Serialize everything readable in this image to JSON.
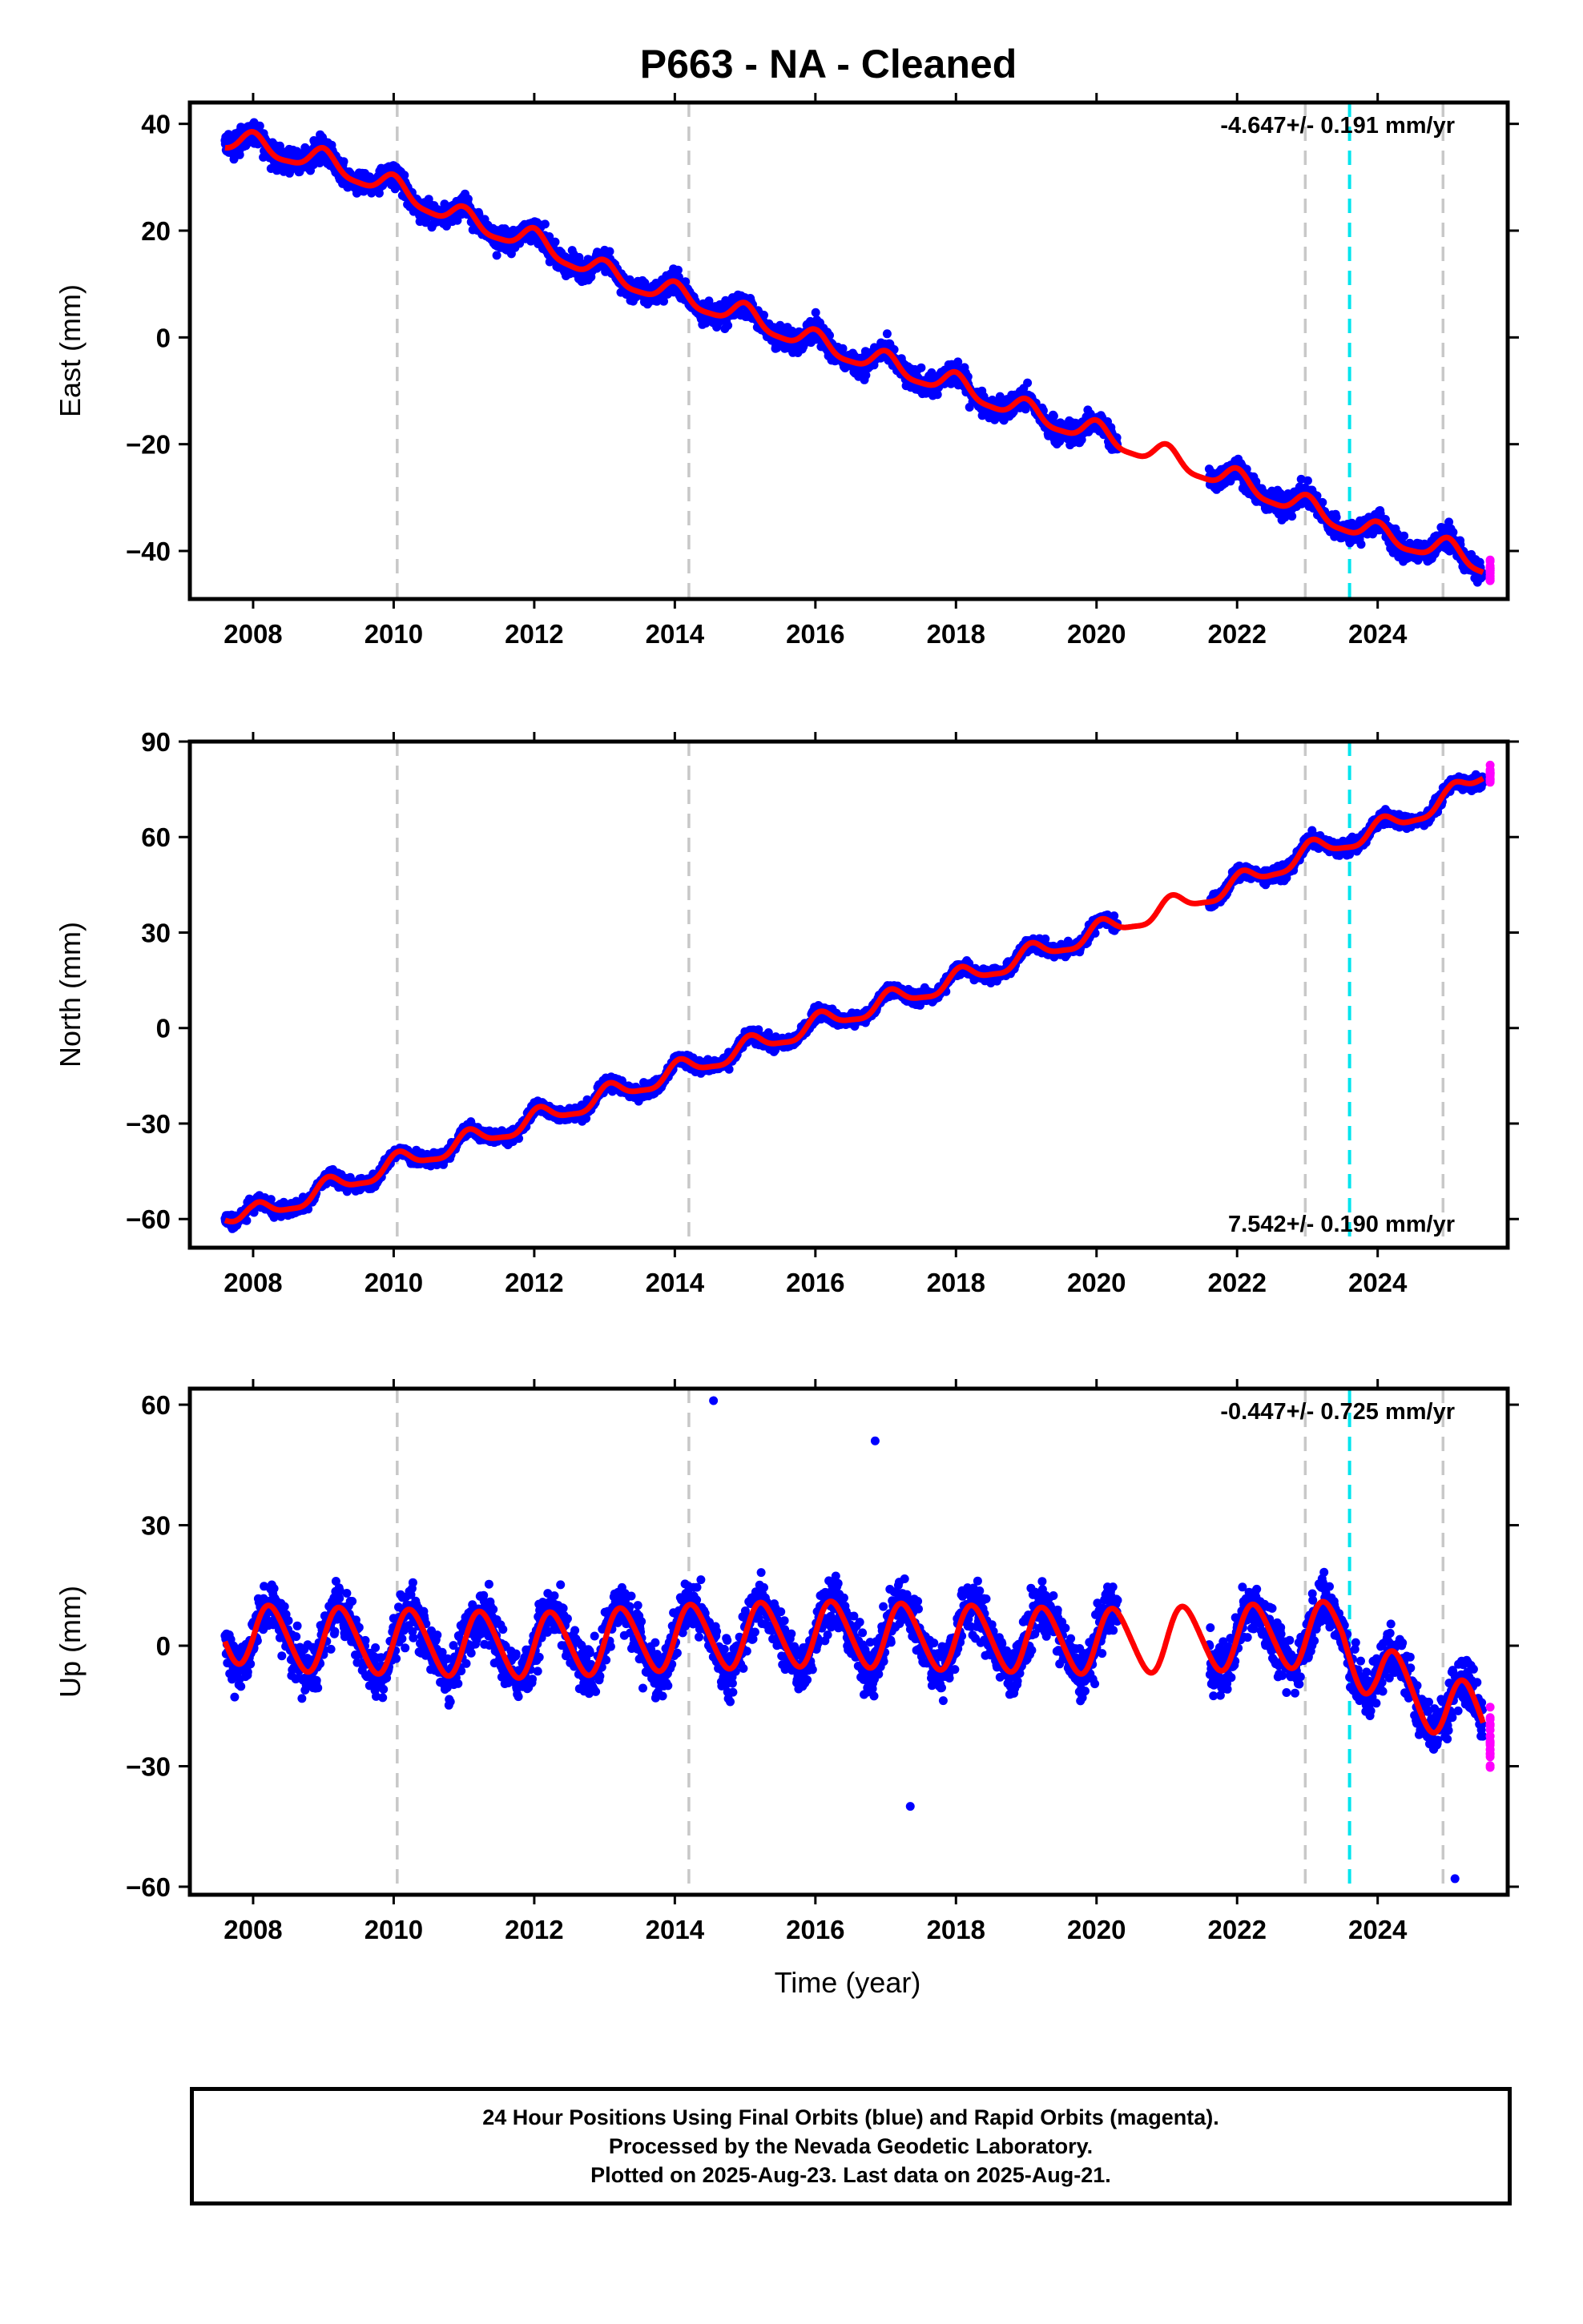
{
  "title": "P663  - NA - Cleaned",
  "xlabel": "Time (year)",
  "footer": {
    "line1": "24 Hour Positions Using Final Orbits (blue) and Rapid Orbits (magenta).",
    "line2": "Processed by the Nevada Geodetic Laboratory.",
    "line3": "Plotted on 2025-Aug-23. Last data on 2025-Aug-21."
  },
  "colors": {
    "final_orbit_points": "#0000ff",
    "rapid_orbit_points": "#ff00ff",
    "model_curve": "#ff0000",
    "event_lines": "#c8c8c8",
    "highlight_event_line": "#00e5ee"
  },
  "chart_data": [
    {
      "type": "scatter",
      "component": "east",
      "ylabel": "East (mm)",
      "rate_text": "-4.647+/- 0.191 mm/yr",
      "xlim": [
        2007.1,
        2025.85
      ],
      "ylim": [
        -49,
        44
      ],
      "xticks": [
        2008,
        2010,
        2012,
        2014,
        2016,
        2018,
        2020,
        2022,
        2024
      ],
      "yticks": [
        -40,
        -20,
        0,
        20,
        40
      ],
      "final_orbit_span": [
        2007.6,
        2025.5
      ],
      "rapid_orbit_span": [
        2025.5,
        2025.62
      ],
      "data_gap": [
        2020.3,
        2021.6
      ],
      "event_lines": [
        2010.05,
        2014.2,
        2022.97,
        2024.93
      ],
      "highlight_event_line": 2023.6,
      "model": {
        "reference_year": 2016,
        "value_at_reference": -1.0,
        "annual_amplitude": 2.0,
        "annual_phase_deg": 90,
        "semiannual_amplitude": 0.5,
        "scatter": 2.0,
        "offsets": [
          {
            "year": 2024.93,
            "value": 2.5
          }
        ]
      },
      "samples": {
        "years": [
          2007.6,
          2008.0,
          2009.0,
          2010.0,
          2011.0,
          2012.0,
          2013.0,
          2014.0,
          2015.0,
          2016.0,
          2017.0,
          2018.0,
          2019.0,
          2020.0,
          2022.0,
          2023.0,
          2024.0,
          2025.0,
          2025.6
        ],
        "values": [
          37,
          36,
          33,
          28,
          22,
          18,
          12,
          8,
          4,
          -1,
          -5,
          -9,
          -14,
          -18,
          -27,
          -32,
          -37,
          -40,
          -43
        ]
      }
    },
    {
      "type": "scatter",
      "component": "north",
      "ylabel": "North (mm)",
      "rate_text": "7.542+/- 0.190 mm/yr",
      "xlim": [
        2007.1,
        2025.85
      ],
      "ylim": [
        -69,
        90
      ],
      "xticks": [
        2008,
        2010,
        2012,
        2014,
        2016,
        2018,
        2020,
        2022,
        2024
      ],
      "yticks": [
        -60,
        -30,
        0,
        30,
        60,
        90
      ],
      "final_orbit_span": [
        2007.6,
        2025.5
      ],
      "rapid_orbit_span": [
        2025.5,
        2025.62
      ],
      "data_gap": [
        2020.3,
        2021.6
      ],
      "event_lines": [
        2010.05,
        2014.2,
        2022.97,
        2024.93
      ],
      "highlight_event_line": 2023.6,
      "model": {
        "reference_year": 2016,
        "value_at_reference": 0,
        "annual_amplitude": 3.0,
        "annual_phase_deg": 60,
        "semiannual_amplitude": 0.8,
        "scatter": 2.0,
        "offsets": []
      },
      "samples": {
        "years": [
          2007.6,
          2008.0,
          2010.0,
          2012.0,
          2014.0,
          2016.0,
          2018.0,
          2020.0,
          2022.0,
          2023.0,
          2024.0,
          2025.0,
          2025.6
        ],
        "values": [
          -58,
          -59,
          -43,
          -29,
          -14,
          1,
          15,
          30,
          45,
          55,
          62,
          72,
          82
        ]
      }
    },
    {
      "type": "scatter",
      "component": "up",
      "ylabel": "Up (mm)",
      "rate_text": "-0.447+/- 0.725 mm/yr",
      "xlim": [
        2007.1,
        2025.85
      ],
      "ylim": [
        -62,
        64
      ],
      "xticks": [
        2008,
        2010,
        2012,
        2014,
        2016,
        2018,
        2020,
        2022,
        2024
      ],
      "yticks": [
        -60,
        -30,
        0,
        30,
        60
      ],
      "final_orbit_span": [
        2007.6,
        2025.5
      ],
      "rapid_orbit_span": [
        2025.5,
        2025.62
      ],
      "data_gap": [
        2020.3,
        2021.6
      ],
      "event_lines": [
        2010.05,
        2014.2,
        2022.97,
        2024.93
      ],
      "highlight_event_line": 2023.6,
      "model": {
        "reference_year": 2016,
        "value_at_reference": 1.5,
        "annual_amplitude": 8.0,
        "annual_phase_deg": 0,
        "semiannual_amplitude": 0.8,
        "scatter": 6.0,
        "offsets": [
          {
            "year": 2023.6,
            "value": -10
          },
          {
            "year": 2024.93,
            "value": -5
          }
        ]
      },
      "samples": {
        "years": [
          2007.6,
          2008.0,
          2010.0,
          2012.0,
          2014.0,
          2016.0,
          2018.0,
          2020.0,
          2022.0,
          2023.5,
          2024.0,
          2025.0,
          2025.6
        ],
        "values": [
          5,
          2,
          1,
          0,
          2,
          3,
          2,
          1,
          2,
          3,
          -8,
          -15,
          -20
        ]
      },
      "outliers": [
        {
          "x": 2014.55,
          "y": 61
        },
        {
          "x": 2016.85,
          "y": 51
        },
        {
          "x": 2017.35,
          "y": -40
        },
        {
          "x": 2025.1,
          "y": -58
        }
      ]
    }
  ]
}
